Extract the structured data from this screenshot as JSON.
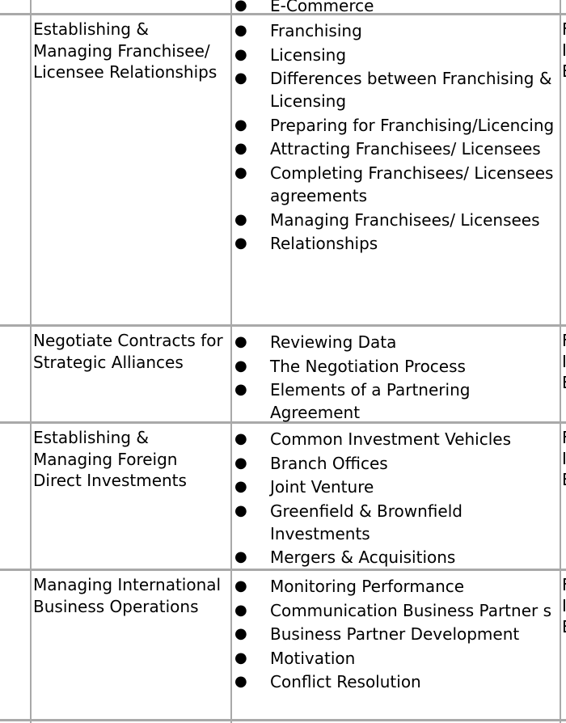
{
  "top_partial_item": "E-Commerce",
  "rows": [
    {
      "topic": "Establishing & Managing Franchisee/ Licensee Relationships",
      "items": [
        "Franchising",
        "Licensing",
        "Differences between Franchising & Licensing",
        "Preparing for Franchising/Licencing",
        "Attracting Franchisees/ Licensees",
        "Completing Franchisees/ Licensees agreements",
        "Managing Franchisees/ Licensees",
        "Relationships"
      ],
      "right_clipped": [
        "F",
        "I",
        "E"
      ]
    },
    {
      "topic": "Negotiate Contracts for Strategic Alliances",
      "items": [
        "Reviewing Data",
        "The Negotiation Process",
        "Elements of a Partnering Agreement"
      ],
      "right_clipped": [
        "F",
        "I",
        "E"
      ]
    },
    {
      "topic": "Establishing & Managing Foreign Direct Investments",
      "items": [
        "Common Investment Vehicles",
        "Branch Offices",
        "Joint Venture",
        "Greenfield & Brownfield Investments",
        "Mergers & Acquisitions"
      ],
      "right_clipped": [
        "F",
        "I",
        "E"
      ]
    },
    {
      "topic": "Managing International Business Operations",
      "items": [
        "Monitoring Performance",
        "Communication Business Partner s",
        "Business Partner Development",
        "Motivation",
        "Conflict Resolution"
      ],
      "right_clipped": [
        "F",
        "I",
        "E"
      ]
    }
  ],
  "icons": {
    "bullet": "bullet-dot-icon"
  },
  "colors": {
    "border": "#a9a9a9",
    "text": "#000000"
  }
}
